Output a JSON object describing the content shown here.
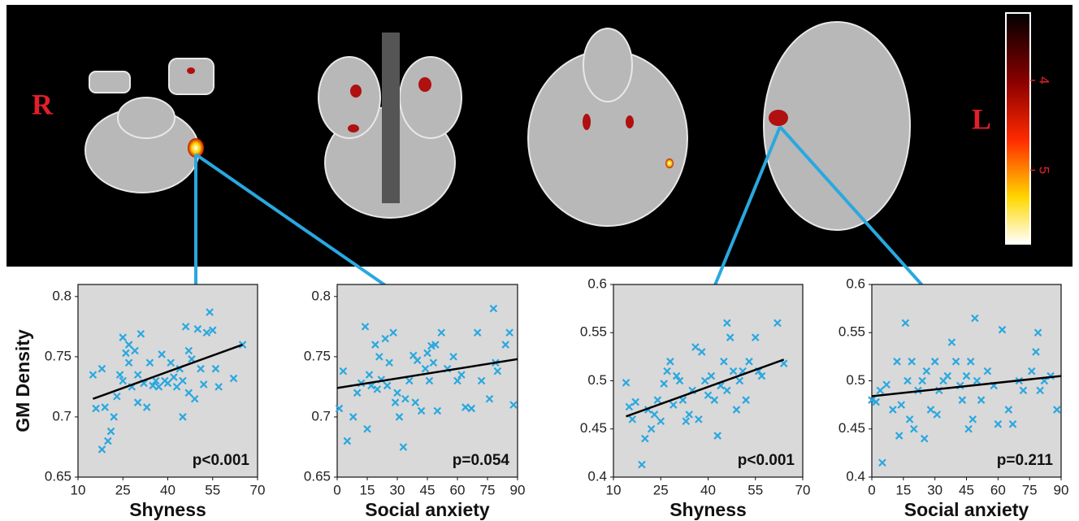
{
  "brain_panel": {
    "labels": [
      "R",
      "L"
    ],
    "colorbar": {
      "lim": [
        3.25,
        5.82
      ],
      "ticks": [
        4,
        5
      ]
    }
  },
  "chart_data": [
    {
      "type": "scatter",
      "y_label": "GM Density",
      "x_label": "Shyness",
      "annotation": "p<0.001",
      "color": "#29a8e0",
      "xlim": [
        10,
        70
      ],
      "xticks": [
        10,
        25,
        40,
        55,
        70
      ],
      "ylim": [
        0.65,
        0.81
      ],
      "yticks": [
        0.65,
        0.7,
        0.75,
        0.8
      ],
      "x": [
        15,
        16,
        18,
        18,
        19,
        20,
        21,
        22,
        23,
        24,
        25,
        25,
        26,
        27,
        27,
        28,
        29,
        30,
        30,
        31,
        32,
        33,
        34,
        35,
        36,
        37,
        38,
        39,
        40,
        41,
        42,
        43,
        44,
        45,
        45,
        46,
        47,
        47,
        48,
        49,
        50,
        51,
        52,
        53,
        54,
        55,
        56,
        57,
        62,
        65
      ],
      "values": [
        0.735,
        0.707,
        0.74,
        0.673,
        0.708,
        0.68,
        0.688,
        0.7,
        0.717,
        0.735,
        0.766,
        0.73,
        0.753,
        0.745,
        0.76,
        0.725,
        0.755,
        0.735,
        0.712,
        0.769,
        0.728,
        0.708,
        0.745,
        0.726,
        0.73,
        0.725,
        0.752,
        0.73,
        0.728,
        0.745,
        0.733,
        0.725,
        0.74,
        0.7,
        0.73,
        0.775,
        0.755,
        0.72,
        0.748,
        0.715,
        0.773,
        0.74,
        0.727,
        0.77,
        0.787,
        0.772,
        0.74,
        0.725,
        0.732,
        0.76
      ],
      "trendline": {
        "x": [
          15,
          65
        ],
        "y": [
          0.715,
          0.76
        ]
      }
    },
    {
      "type": "scatter",
      "x_label": "Social anxiety",
      "annotation": "p=0.054",
      "color": "#29a8e0",
      "xlim": [
        0,
        90
      ],
      "xticks": [
        0,
        15,
        30,
        45,
        60,
        75,
        90
      ],
      "ylim": [
        0.65,
        0.81
      ],
      "yticks": [
        0.65,
        0.7,
        0.75,
        0.8
      ],
      "x": [
        1,
        3,
        5,
        8,
        10,
        12,
        14,
        15,
        16,
        17,
        19,
        20,
        21,
        22,
        24,
        25,
        26,
        28,
        29,
        30,
        31,
        33,
        34,
        36,
        38,
        39,
        40,
        42,
        44,
        45,
        46,
        47,
        48,
        49,
        50,
        52,
        55,
        58,
        60,
        62,
        64,
        67,
        70,
        72,
        76,
        78,
        79,
        80,
        84,
        86,
        88
      ],
      "values": [
        0.707,
        0.738,
        0.68,
        0.7,
        0.72,
        0.728,
        0.775,
        0.69,
        0.735,
        0.726,
        0.76,
        0.723,
        0.75,
        0.731,
        0.765,
        0.726,
        0.745,
        0.77,
        0.712,
        0.72,
        0.7,
        0.675,
        0.715,
        0.73,
        0.751,
        0.712,
        0.747,
        0.705,
        0.74,
        0.753,
        0.73,
        0.759,
        0.745,
        0.76,
        0.705,
        0.77,
        0.74,
        0.75,
        0.73,
        0.735,
        0.708,
        0.707,
        0.77,
        0.73,
        0.715,
        0.79,
        0.745,
        0.738,
        0.76,
        0.77,
        0.71
      ],
      "trendline": {
        "x": [
          0,
          90
        ],
        "y": [
          0.724,
          0.748
        ]
      }
    },
    {
      "type": "scatter",
      "x_label": "Shyness",
      "annotation": "p<0.001",
      "color": "#29a8e0",
      "xlim": [
        10,
        70
      ],
      "xticks": [
        10,
        25,
        40,
        55,
        70
      ],
      "ylim": [
        0.4,
        0.6
      ],
      "yticks": [
        0.4,
        0.45,
        0.5,
        0.55,
        0.6
      ],
      "x": [
        14,
        15,
        16,
        17,
        19,
        20,
        21,
        22,
        23,
        24,
        25,
        26,
        27,
        28,
        29,
        30,
        31,
        32,
        33,
        34,
        35,
        36,
        37,
        38,
        39,
        40,
        41,
        42,
        43,
        44,
        45,
        46,
        46,
        47,
        48,
        49,
        50,
        51,
        52,
        53,
        55,
        56,
        57,
        62,
        64
      ],
      "values": [
        0.498,
        0.473,
        0.46,
        0.478,
        0.413,
        0.44,
        0.47,
        0.45,
        0.465,
        0.48,
        0.458,
        0.497,
        0.51,
        0.52,
        0.475,
        0.505,
        0.5,
        0.48,
        0.458,
        0.465,
        0.49,
        0.535,
        0.46,
        0.53,
        0.5,
        0.485,
        0.505,
        0.48,
        0.443,
        0.495,
        0.52,
        0.56,
        0.49,
        0.545,
        0.51,
        0.47,
        0.5,
        0.51,
        0.48,
        0.52,
        0.545,
        0.51,
        0.505,
        0.56,
        0.518
      ],
      "trendline": {
        "x": [
          14,
          64
        ],
        "y": [
          0.463,
          0.522
        ]
      }
    },
    {
      "type": "scatter",
      "x_label": "Social anxiety",
      "annotation": "p=0.211",
      "color": "#29a8e0",
      "xlim": [
        0,
        90
      ],
      "xticks": [
        0,
        15,
        30,
        45,
        60,
        75,
        90
      ],
      "ylim": [
        0.4,
        0.6
      ],
      "yticks": [
        0.4,
        0.45,
        0.5,
        0.55,
        0.6
      ],
      "x": [
        0,
        2,
        4,
        5,
        7,
        10,
        12,
        13,
        14,
        16,
        17,
        18,
        19,
        20,
        22,
        24,
        25,
        26,
        28,
        30,
        31,
        32,
        34,
        36,
        38,
        40,
        42,
        43,
        45,
        46,
        47,
        48,
        49,
        50,
        52,
        55,
        58,
        60,
        62,
        65,
        67,
        70,
        72,
        76,
        78,
        79,
        80,
        82,
        85,
        88
      ],
      "values": [
        0.48,
        0.478,
        0.49,
        0.415,
        0.496,
        0.47,
        0.52,
        0.443,
        0.475,
        0.56,
        0.5,
        0.46,
        0.52,
        0.45,
        0.49,
        0.5,
        0.44,
        0.51,
        0.47,
        0.52,
        0.465,
        0.49,
        0.5,
        0.505,
        0.54,
        0.52,
        0.495,
        0.48,
        0.505,
        0.45,
        0.52,
        0.46,
        0.565,
        0.5,
        0.48,
        0.51,
        0.495,
        0.455,
        0.553,
        0.47,
        0.455,
        0.5,
        0.49,
        0.51,
        0.53,
        0.55,
        0.49,
        0.5,
        0.505,
        0.47
      ],
      "trendline": {
        "x": [
          0,
          90
        ],
        "y": [
          0.484,
          0.505
        ]
      }
    }
  ]
}
